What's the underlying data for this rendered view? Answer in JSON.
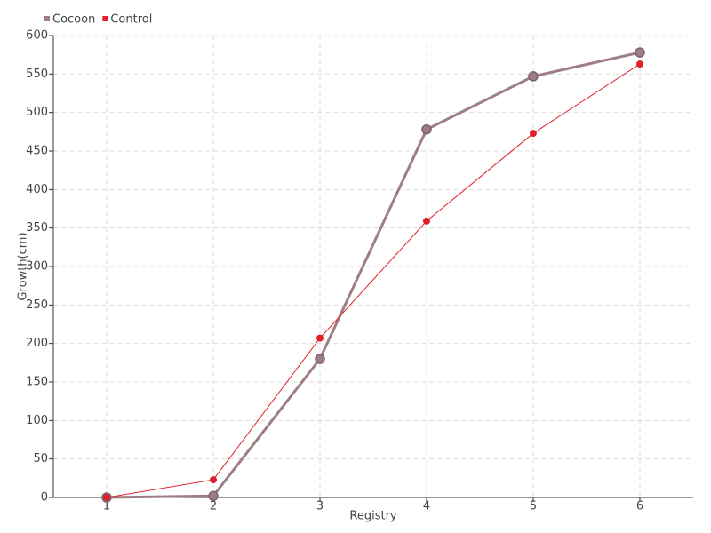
{
  "chart_data": {
    "type": "line",
    "x_label": "Registry",
    "y_label": "Growth(cm)",
    "x": [
      1,
      2,
      3,
      4,
      5,
      6
    ],
    "series": [
      {
        "name": "Cocoon",
        "color": "#9e7e85",
        "values": [
          0,
          2,
          180,
          478,
          547,
          578
        ]
      },
      {
        "name": "Control",
        "color": "#e0202a",
        "values": [
          0,
          23,
          207,
          359,
          473,
          563
        ]
      }
    ],
    "xlim": [
      0.5,
      6.5
    ],
    "xticks": [
      1,
      2,
      3,
      4,
      5,
      6
    ],
    "ylim": [
      0,
      600
    ],
    "yticks": [
      0,
      50,
      100,
      150,
      200,
      250,
      300,
      350,
      400,
      450,
      500,
      550,
      600
    ],
    "grid": true,
    "legend": "top-left"
  }
}
